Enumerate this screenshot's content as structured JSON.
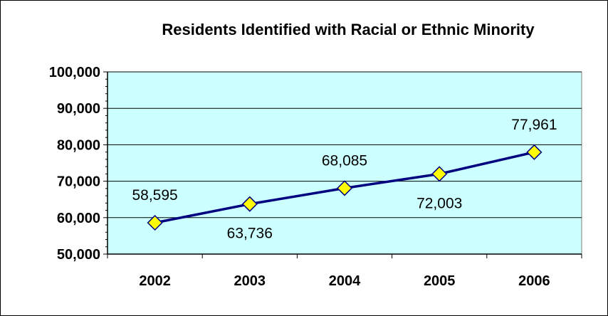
{
  "chart_data": {
    "type": "line",
    "title": "Residents Identified with Racial or Ethnic Minority",
    "xlabel": "",
    "ylabel": "",
    "categories": [
      "2002",
      "2003",
      "2004",
      "2005",
      "2006"
    ],
    "series": [
      {
        "values": [
          58595,
          63736,
          68085,
          72003,
          77961
        ]
      }
    ],
    "data_labels": [
      "58,595",
      "63,736",
      "68,085",
      "72,003",
      "77,961"
    ],
    "data_label_positions": [
      "above",
      "below",
      "above",
      "below",
      "above"
    ],
    "ylim": [
      50000,
      100000
    ],
    "y_ticks": [
      50000,
      60000,
      70000,
      80000,
      90000,
      100000
    ],
    "y_tick_labels": [
      "50,000",
      "60,000",
      "70,000",
      "80,000",
      "90,000",
      "100,000"
    ],
    "grid": "horizontal",
    "legend": "none",
    "colors": {
      "plot_background": "#CCFFFF",
      "line": "#000080",
      "marker_fill": "#FFFF00",
      "marker_stroke": "#000080",
      "gridline": "#000000",
      "axis": "#000000"
    },
    "marker": "diamond"
  }
}
